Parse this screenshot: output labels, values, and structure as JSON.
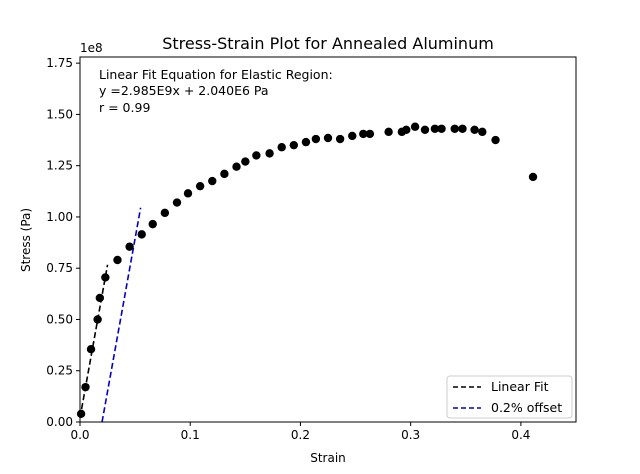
{
  "chart_data": {
    "type": "scatter",
    "title": "Stress-Strain Plot for Annealed Aluminum",
    "xlabel": "Strain",
    "ylabel": "Stress (Pa)",
    "y_offset_text": "1e8",
    "xlim": [
      0,
      0.45
    ],
    "ylim": [
      0,
      1.78
    ],
    "xticks": [
      "0.0",
      "0.1",
      "0.2",
      "0.3",
      "0.4"
    ],
    "yticks": [
      "0.00",
      "0.25",
      "0.50",
      "0.75",
      "1.00",
      "1.25",
      "1.50",
      "1.75"
    ],
    "annotation": [
      "Linear Fit Equation for Elastic Region:",
      "y =2.985E9x + 2.040E6 Pa",
      "r = 0.99"
    ],
    "legend_placement": "lower-right",
    "grid": false,
    "series": [
      {
        "style": "markers",
        "color": "#000000",
        "points": [
          [
            0.001,
            0.04
          ],
          [
            0.005,
            0.17
          ],
          [
            0.01,
            0.355
          ],
          [
            0.016,
            0.5
          ],
          [
            0.018,
            0.605
          ],
          [
            0.023,
            0.705
          ],
          [
            0.034,
            0.79
          ],
          [
            0.045,
            0.855
          ],
          [
            0.056,
            0.915
          ],
          [
            0.066,
            0.965
          ],
          [
            0.077,
            1.02
          ],
          [
            0.088,
            1.07
          ],
          [
            0.098,
            1.115
          ],
          [
            0.109,
            1.15
          ],
          [
            0.12,
            1.175
          ],
          [
            0.131,
            1.21
          ],
          [
            0.142,
            1.245
          ],
          [
            0.15,
            1.27
          ],
          [
            0.16,
            1.3
          ],
          [
            0.172,
            1.31
          ],
          [
            0.183,
            1.34
          ],
          [
            0.194,
            1.35
          ],
          [
            0.205,
            1.365
          ],
          [
            0.214,
            1.38
          ],
          [
            0.225,
            1.385
          ],
          [
            0.236,
            1.38
          ],
          [
            0.247,
            1.395
          ],
          [
            0.257,
            1.405
          ],
          [
            0.263,
            1.405
          ],
          [
            0.28,
            1.415
          ],
          [
            0.292,
            1.415
          ],
          [
            0.296,
            1.425
          ],
          [
            0.304,
            1.44
          ],
          [
            0.313,
            1.425
          ],
          [
            0.322,
            1.43
          ],
          [
            0.328,
            1.43
          ],
          [
            0.34,
            1.43
          ],
          [
            0.347,
            1.43
          ],
          [
            0.358,
            1.425
          ],
          [
            0.365,
            1.415
          ],
          [
            0.377,
            1.375
          ],
          [
            0.411,
            1.195
          ]
        ]
      },
      {
        "name": "Linear Fit",
        "style": "dashed",
        "color": "#000000",
        "points": [
          [
            0.0,
            0.0204
          ],
          [
            0.025,
            0.7667
          ]
        ]
      },
      {
        "name": "0.2% offset",
        "style": "dashed",
        "color": "#0000cc",
        "points": [
          [
            0.02,
            0.0
          ],
          [
            0.055,
            1.0448
          ]
        ]
      }
    ]
  }
}
